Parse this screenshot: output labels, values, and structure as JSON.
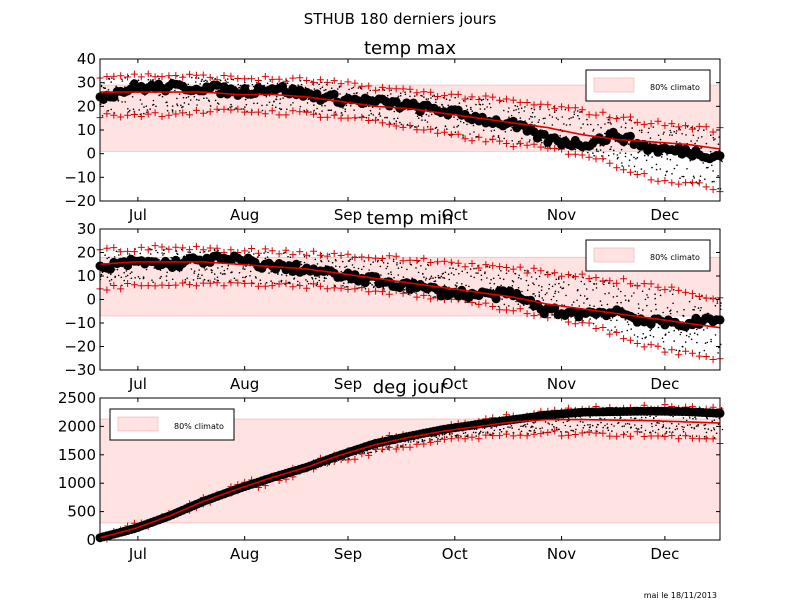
{
  "figure": {
    "suptitle": "STHUB 180 derniers jours",
    "footer": "mai le 18/11/2013",
    "months": [
      "Jul",
      "Aug",
      "Sep",
      "Oct",
      "Nov",
      "Dec"
    ]
  },
  "chart_data": [
    {
      "type": "line",
      "title": "temp max",
      "xlabel": "",
      "ylabel": "",
      "ylim": [
        -20,
        40
      ],
      "yticks": [
        -20,
        -10,
        0,
        10,
        20,
        30,
        40
      ],
      "legend": {
        "label": "80% climato",
        "placement": "top-right"
      },
      "band": [
        1,
        29
      ],
      "series": [
        {
          "role": "observed",
          "x": [
            0,
            10,
            20,
            30,
            40,
            50,
            60,
            70,
            80,
            90,
            100,
            110,
            120,
            130,
            140,
            150,
            160,
            170,
            180
          ],
          "y": [
            24,
            28,
            28,
            28,
            26,
            28,
            25,
            23,
            22,
            20,
            18,
            15,
            12,
            6,
            4,
            8,
            2,
            1,
            -1
          ]
        },
        {
          "role": "mean",
          "x": [
            0,
            10,
            20,
            30,
            40,
            50,
            60,
            70,
            80,
            90,
            100,
            110,
            120,
            130,
            140,
            150,
            160,
            170,
            180
          ],
          "y": [
            26,
            26,
            26,
            26,
            25,
            25,
            24,
            22,
            20,
            19,
            17,
            15,
            13,
            11,
            8,
            6,
            5,
            4,
            2
          ]
        },
        {
          "role": "upper-envelope",
          "x": [
            0,
            20,
            40,
            60,
            80,
            100,
            120,
            140,
            160,
            180
          ],
          "y": [
            33,
            33,
            32,
            31,
            28,
            25,
            22,
            18,
            13,
            10
          ]
        },
        {
          "role": "lower-envelope",
          "x": [
            0,
            20,
            40,
            60,
            80,
            100,
            120,
            140,
            160,
            180
          ],
          "y": [
            16,
            17,
            18,
            17,
            14,
            8,
            4,
            0,
            -10,
            -15
          ]
        }
      ]
    },
    {
      "type": "line",
      "title": "temp min",
      "xlabel": "",
      "ylabel": "",
      "ylim": [
        -30,
        30
      ],
      "yticks": [
        -30,
        -20,
        -10,
        0,
        10,
        20,
        30
      ],
      "legend": {
        "label": "80% climato",
        "placement": "top-right"
      },
      "band": [
        -7,
        18
      ],
      "series": [
        {
          "role": "observed",
          "x": [
            0,
            10,
            20,
            30,
            40,
            50,
            60,
            70,
            80,
            90,
            100,
            110,
            120,
            130,
            140,
            150,
            160,
            170,
            180
          ],
          "y": [
            13,
            16,
            15,
            17,
            17,
            14,
            13,
            10,
            8,
            6,
            3,
            2,
            2,
            -5,
            -6,
            -5,
            -10,
            -10,
            -9
          ]
        },
        {
          "role": "mean",
          "x": [
            0,
            10,
            20,
            30,
            40,
            50,
            60,
            70,
            80,
            90,
            100,
            110,
            120,
            130,
            140,
            150,
            160,
            170,
            180
          ],
          "y": [
            15,
            16,
            16,
            16,
            15,
            14,
            13,
            11,
            9,
            7,
            5,
            3,
            1,
            -2,
            -4,
            -6,
            -8,
            -10,
            -12
          ]
        },
        {
          "role": "upper-envelope",
          "x": [
            0,
            20,
            40,
            60,
            80,
            100,
            120,
            140,
            160,
            180
          ],
          "y": [
            21,
            22,
            21,
            20,
            18,
            16,
            13,
            10,
            6,
            0
          ]
        },
        {
          "role": "lower-envelope",
          "x": [
            0,
            20,
            40,
            60,
            80,
            100,
            120,
            140,
            160,
            180
          ],
          "y": [
            5,
            7,
            7,
            6,
            4,
            0,
            -4,
            -10,
            -20,
            -26
          ]
        }
      ]
    },
    {
      "type": "line",
      "title": "deg jour",
      "xlabel": "",
      "ylabel": "",
      "ylim": [
        0,
        2500
      ],
      "yticks": [
        0,
        500,
        1000,
        1500,
        2000,
        2500
      ],
      "legend": {
        "label": "80% climato",
        "placement": "top-left"
      },
      "band": [
        300,
        2130
      ],
      "series": [
        {
          "role": "observed",
          "x": [
            0,
            10,
            20,
            30,
            40,
            50,
            60,
            70,
            80,
            90,
            100,
            110,
            120,
            130,
            140,
            150,
            160,
            170,
            180
          ],
          "y": [
            40,
            200,
            420,
            680,
            900,
            1100,
            1280,
            1500,
            1700,
            1830,
            1950,
            2040,
            2120,
            2200,
            2250,
            2260,
            2270,
            2260,
            2230
          ]
        },
        {
          "role": "mean",
          "x": [
            0,
            10,
            20,
            30,
            40,
            50,
            60,
            70,
            80,
            90,
            100,
            110,
            120,
            130,
            140,
            150,
            160,
            170,
            180
          ],
          "y": [
            40,
            200,
            420,
            680,
            900,
            1100,
            1280,
            1500,
            1680,
            1810,
            1920,
            2000,
            2080,
            2120,
            2120,
            2110,
            2100,
            2080,
            2060
          ]
        },
        {
          "role": "upper-envelope",
          "x": [
            0,
            20,
            40,
            60,
            80,
            100,
            120,
            140,
            160,
            180
          ],
          "y": [
            50,
            450,
            950,
            1300,
            1750,
            1980,
            2180,
            2320,
            2340,
            2330
          ]
        },
        {
          "role": "lower-envelope",
          "x": [
            0,
            20,
            40,
            60,
            80,
            100,
            120,
            140,
            160,
            180
          ],
          "y": [
            30,
            400,
            860,
            1230,
            1550,
            1780,
            1860,
            1880,
            1860,
            1740
          ]
        }
      ]
    }
  ]
}
